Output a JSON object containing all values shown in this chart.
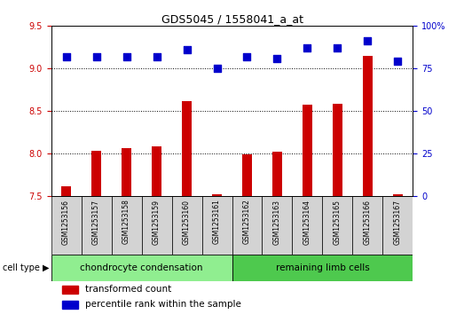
{
  "title": "GDS5045 / 1558041_a_at",
  "samples": [
    "GSM1253156",
    "GSM1253157",
    "GSM1253158",
    "GSM1253159",
    "GSM1253160",
    "GSM1253161",
    "GSM1253162",
    "GSM1253163",
    "GSM1253164",
    "GSM1253165",
    "GSM1253166",
    "GSM1253167"
  ],
  "transformed_count": [
    7.62,
    8.03,
    8.06,
    8.09,
    8.62,
    7.52,
    7.99,
    8.02,
    8.57,
    8.58,
    9.15,
    7.52
  ],
  "percentile_rank": [
    82,
    82,
    82,
    82,
    86,
    75,
    82,
    81,
    87,
    87,
    91,
    79
  ],
  "ylim_left": [
    7.5,
    9.5
  ],
  "ylim_right": [
    0,
    100
  ],
  "yticks_left": [
    7.5,
    8.0,
    8.5,
    9.0,
    9.5
  ],
  "yticks_right": [
    0,
    25,
    50,
    75,
    100
  ],
  "ytick_labels_right": [
    "0",
    "25",
    "50",
    "75",
    "100%"
  ],
  "bar_color": "#cc0000",
  "dot_color": "#0000cc",
  "group1_label": "chondrocyte condensation",
  "group2_label": "remaining limb cells",
  "group1_count": 6,
  "group2_count": 6,
  "legend_bar": "transformed count",
  "legend_dot": "percentile rank within the sample",
  "cell_type_label": "cell type",
  "group1_color": "#90ee90",
  "group2_color": "#4ec94e",
  "sample_box_color": "#d3d3d3",
  "dot_size": 36,
  "bar_width": 0.35,
  "gridline_values": [
    8.0,
    8.5,
    9.0
  ],
  "title_fontsize": 9,
  "tick_fontsize": 7,
  "label_fontsize": 7.5
}
